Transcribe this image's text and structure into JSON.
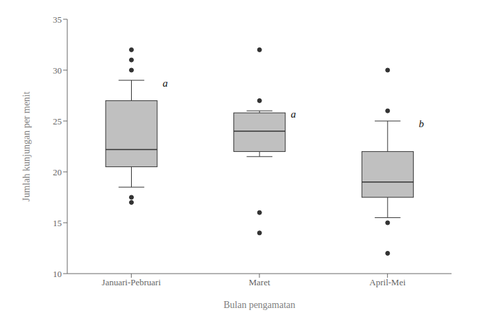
{
  "chart_data": {
    "type": "box",
    "categories": [
      "Januari-Pebruari",
      "Maret",
      "April-Mei"
    ],
    "boxes": [
      {
        "q1": 20.5,
        "median": 22.2,
        "q3": 27.0,
        "whislo": 18.5,
        "whishi": 29.0,
        "fliers": [
          17.0,
          17.5,
          30.0,
          31.0,
          32.0
        ]
      },
      {
        "q1": 22.0,
        "median": 24.0,
        "q3": 25.8,
        "whislo": 21.5,
        "whishi": 26.0,
        "fliers": [
          14.0,
          16.0,
          27.0,
          32.0
        ]
      },
      {
        "q1": 17.5,
        "median": 19.0,
        "q3": 22.0,
        "whislo": 15.5,
        "whishi": 25.0,
        "fliers": [
          12.0,
          15.0,
          26.0,
          30.0
        ]
      }
    ],
    "labels": [
      "a",
      "a",
      "b"
    ],
    "xlabel": "Bulan pengamatan",
    "ylabel": "Jumlah kunjungan per menit",
    "ylim": [
      10,
      35
    ],
    "yticks": [
      10,
      15,
      20,
      25,
      30,
      35
    ],
    "color": "#c0c0c0",
    "grid": false
  }
}
